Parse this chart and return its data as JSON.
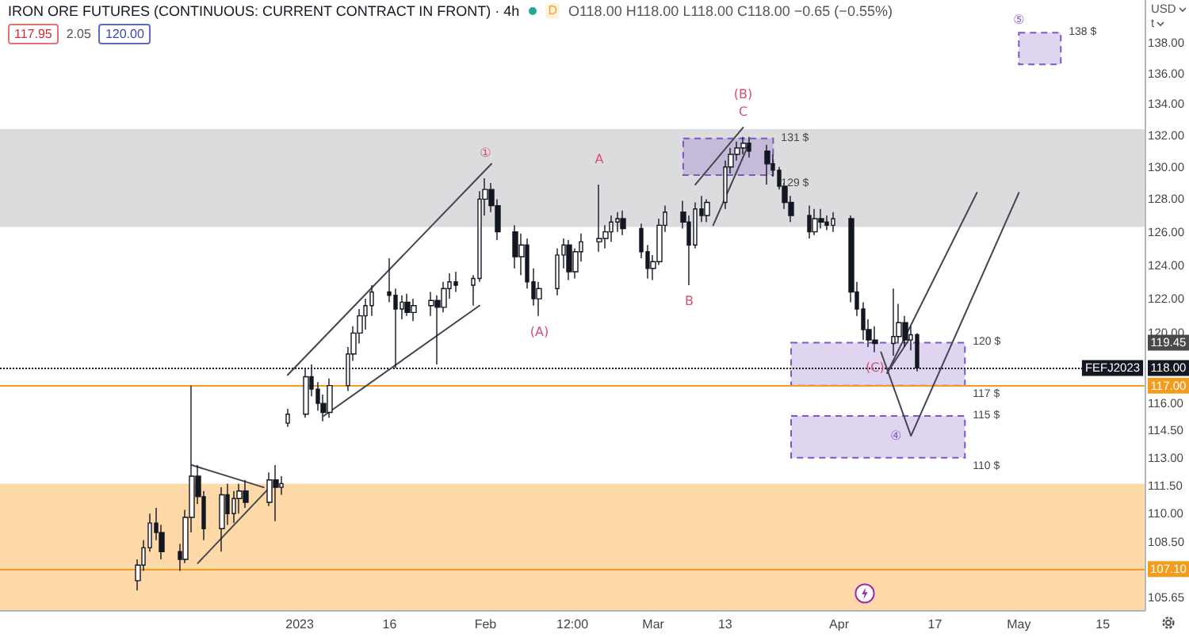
{
  "chart_data": {
    "type": "candlestick",
    "title": "IRON ORE FUTURES (CONTINUOUS: CURRENT CONTRACT IN FRONT) · 4h",
    "ylabel": "USD",
    "color": "#131722",
    "log": true,
    "xlim": [
      "2022-11-12",
      "2023-05-22"
    ],
    "xticks": [
      {
        "value": "2023-01-01",
        "label": "2023"
      },
      {
        "value": "2023-01-16",
        "label": "16"
      },
      {
        "value": "2023-02-01",
        "label": "Feb"
      },
      {
        "value": "2023-02-15T12:00",
        "label": "12:00"
      },
      {
        "value": "2023-03-01",
        "label": "Mar"
      },
      {
        "value": "2023-03-13",
        "label": "13"
      },
      {
        "value": "2023-04-01",
        "label": "Apr"
      },
      {
        "value": "2023-04-17",
        "label": "17"
      },
      {
        "value": "2023-05-01",
        "label": "May"
      },
      {
        "value": "2023-05-15",
        "label": "15"
      }
    ],
    "ylim": [
      105,
      140.9
    ],
    "yticks": [
      {
        "value": 138,
        "label": "138.00"
      },
      {
        "value": 136,
        "label": "136.00"
      },
      {
        "value": 134,
        "label": "134.00"
      },
      {
        "value": 132,
        "label": "132.00"
      },
      {
        "value": 130,
        "label": "130.00"
      },
      {
        "value": 128,
        "label": "128.00"
      },
      {
        "value": 126,
        "label": "126.00"
      },
      {
        "value": 124,
        "label": "124.00"
      },
      {
        "value": 122,
        "label": "122.00"
      },
      {
        "value": 120,
        "label": "120.00"
      },
      {
        "value": 116,
        "label": "116.00"
      },
      {
        "value": 114.5,
        "label": "114.50"
      },
      {
        "value": 113,
        "label": "113.00"
      },
      {
        "value": 111.5,
        "label": "111.50"
      },
      {
        "value": 110,
        "label": "110.00"
      },
      {
        "value": 108.5,
        "label": "108.50"
      },
      {
        "value": 105.65,
        "label": "105.65"
      }
    ],
    "x": [
      "2022-12-05",
      "2022-12-06",
      "2022-12-07",
      "2022-12-08",
      "2022-12-09",
      "2022-12-12",
      "2022-12-13",
      "2022-12-14",
      "2022-12-15",
      "2022-12-16",
      "2022-12-19",
      "2022-12-20",
      "2022-12-21",
      "2022-12-22",
      "2022-12-23",
      "2022-12-27",
      "2022-12-28",
      "2022-12-29",
      "2022-12-30",
      "2023-01-02",
      "2023-01-03",
      "2023-01-04",
      "2023-01-05",
      "2023-01-06",
      "2023-01-09",
      "2023-01-10",
      "2023-01-11",
      "2023-01-12",
      "2023-01-13",
      "2023-01-16",
      "2023-01-17",
      "2023-01-18",
      "2023-01-19",
      "2023-01-20",
      "2023-01-23",
      "2023-01-24",
      "2023-01-25",
      "2023-01-26",
      "2023-01-27",
      "2023-01-30",
      "2023-01-31",
      "2023-02-01",
      "2023-02-02",
      "2023-02-03",
      "2023-02-06",
      "2023-02-07",
      "2023-02-08",
      "2023-02-09",
      "2023-02-10",
      "2023-02-13",
      "2023-02-14",
      "2023-02-15",
      "2023-02-16",
      "2023-02-17",
      "2023-02-20",
      "2023-02-21",
      "2023-02-22",
      "2023-02-23",
      "2023-02-24",
      "2023-02-27",
      "2023-02-28",
      "2023-03-01",
      "2023-03-02",
      "2023-03-03",
      "2023-03-06",
      "2023-03-07",
      "2023-03-08",
      "2023-03-09",
      "2023-03-10",
      "2023-03-13",
      "2023-03-14",
      "2023-03-15",
      "2023-03-16",
      "2023-03-17",
      "2023-03-20",
      "2023-03-21",
      "2023-03-22",
      "2023-03-23",
      "2023-03-24",
      "2023-03-27",
      "2023-03-28",
      "2023-03-29",
      "2023-03-30",
      "2023-03-31",
      "2023-04-03",
      "2023-04-04",
      "2023-04-05",
      "2023-04-06",
      "2023-04-07",
      "2023-04-10",
      "2023-04-11",
      "2023-04-12",
      "2023-04-13",
      "2023-04-14"
    ],
    "ohlc": [
      [
        106.5,
        107.6,
        106.0,
        107.3
      ],
      [
        107.3,
        108.6,
        107.0,
        108.2
      ],
      [
        108.2,
        110.0,
        108.0,
        109.5
      ],
      [
        109.5,
        110.3,
        108.6,
        109.0
      ],
      [
        109.0,
        109.4,
        107.6,
        108.0
      ],
      [
        108.0,
        108.4,
        107.0,
        107.6
      ],
      [
        107.6,
        110.2,
        107.4,
        109.8
      ],
      [
        109.8,
        117.0,
        109.0,
        112.0
      ],
      [
        112.0,
        112.6,
        110.5,
        110.9
      ],
      [
        110.9,
        111.2,
        108.6,
        109.2
      ],
      [
        109.2,
        111.4,
        108.0,
        111.0
      ],
      [
        111.0,
        111.6,
        109.4,
        110.0
      ],
      [
        110.0,
        111.2,
        109.5,
        110.8
      ],
      [
        110.8,
        111.6,
        110.0,
        111.2
      ],
      [
        111.2,
        111.8,
        110.3,
        110.6
      ],
      [
        110.6,
        112.2,
        110.4,
        111.8
      ],
      [
        111.8,
        112.6,
        109.6,
        111.4
      ],
      [
        111.4,
        112.0,
        111.0,
        111.6
      ],
      [
        114.9,
        115.7,
        114.7,
        115.4
      ],
      [
        115.4,
        118.0,
        115.2,
        117.5
      ],
      [
        117.5,
        118.2,
        116.4,
        116.8
      ],
      [
        116.8,
        117.2,
        115.6,
        116.0
      ],
      [
        116.0,
        116.5,
        115.0,
        115.5
      ],
      [
        115.5,
        117.4,
        115.2,
        117.0
      ],
      [
        117.0,
        119.2,
        116.7,
        118.8
      ],
      [
        118.8,
        120.4,
        118.4,
        120.0
      ],
      [
        120.0,
        121.4,
        119.4,
        121.0
      ],
      [
        121.0,
        122.0,
        120.2,
        121.6
      ],
      [
        121.6,
        122.8,
        121.0,
        122.4
      ],
      [
        122.4,
        124.4,
        121.8,
        122.2
      ],
      [
        122.2,
        122.6,
        118.0,
        121.4
      ],
      [
        121.4,
        122.2,
        120.8,
        121.8
      ],
      [
        121.8,
        122.3,
        121.0,
        121.2
      ],
      [
        121.2,
        122.0,
        120.7,
        121.6
      ],
      [
        121.6,
        122.4,
        121.0,
        121.9
      ],
      [
        121.9,
        122.2,
        118.2,
        121.5
      ],
      [
        121.5,
        123.0,
        121.2,
        122.6
      ],
      [
        122.6,
        123.5,
        122.0,
        123.0
      ],
      [
        123.0,
        123.6,
        122.4,
        122.8
      ],
      [
        122.8,
        123.4,
        121.6,
        123.2
      ],
      [
        123.2,
        128.5,
        123.0,
        128.0
      ],
      [
        128.0,
        129.3,
        127.0,
        128.6
      ],
      [
        128.6,
        129.0,
        127.2,
        127.6
      ],
      [
        127.6,
        128.0,
        125.5,
        126.0
      ],
      [
        126.0,
        126.4,
        123.8,
        124.5
      ],
      [
        124.5,
        125.9,
        123.4,
        125.2
      ],
      [
        125.2,
        125.6,
        122.6,
        123.0
      ],
      [
        123.0,
        123.8,
        121.6,
        122.0
      ],
      [
        122.0,
        123.0,
        121.0,
        122.6
      ],
      [
        122.6,
        125.0,
        122.2,
        124.6
      ],
      [
        124.6,
        125.6,
        123.8,
        125.2
      ],
      [
        125.2,
        125.5,
        123.1,
        123.6
      ],
      [
        123.6,
        125.0,
        123.2,
        124.8
      ],
      [
        124.8,
        125.9,
        124.2,
        125.4
      ],
      [
        125.4,
        128.9,
        124.8,
        125.6
      ],
      [
        125.6,
        126.4,
        125.0,
        126.0
      ],
      [
        126.0,
        127.0,
        125.4,
        126.6
      ],
      [
        126.6,
        127.2,
        126.0,
        126.8
      ],
      [
        126.8,
        127.3,
        125.8,
        126.2
      ],
      [
        126.2,
        126.5,
        124.4,
        124.8
      ],
      [
        124.8,
        125.2,
        123.2,
        123.8
      ],
      [
        123.8,
        124.6,
        123.1,
        124.2
      ],
      [
        124.2,
        126.8,
        124.0,
        126.4
      ],
      [
        126.4,
        127.6,
        126.0,
        127.2
      ],
      [
        127.2,
        127.9,
        126.2,
        126.6
      ],
      [
        126.6,
        127.0,
        122.8,
        125.2
      ],
      [
        125.2,
        127.8,
        125.0,
        127.4
      ],
      [
        127.4,
        128.2,
        126.6,
        127.0
      ],
      [
        127.0,
        128.0,
        126.6,
        127.8
      ],
      [
        127.8,
        130.4,
        127.4,
        130.0
      ],
      [
        130.0,
        131.2,
        129.6,
        130.8
      ],
      [
        130.8,
        131.6,
        130.4,
        131.2
      ],
      [
        131.2,
        131.9,
        130.8,
        131.5
      ],
      [
        131.5,
        131.9,
        130.6,
        131.0
      ],
      [
        131.0,
        131.4,
        128.9,
        130.2
      ],
      [
        130.2,
        130.8,
        129.4,
        129.8
      ],
      [
        129.8,
        130.0,
        128.6,
        128.8
      ],
      [
        128.8,
        129.0,
        127.4,
        127.8
      ],
      [
        127.8,
        128.2,
        126.6,
        127.0
      ],
      [
        127.0,
        127.6,
        125.6,
        126.0
      ],
      [
        126.0,
        127.4,
        125.8,
        126.8
      ],
      [
        126.8,
        127.4,
        126.2,
        126.6
      ],
      [
        126.6,
        127.0,
        126.1,
        126.4
      ],
      [
        126.4,
        127.2,
        126.0,
        126.8
      ],
      [
        126.8,
        127.0,
        121.8,
        122.4
      ],
      [
        122.4,
        123.0,
        121.0,
        121.4
      ],
      [
        121.4,
        121.8,
        119.6,
        120.2
      ],
      [
        120.2,
        120.8,
        119.2,
        119.6
      ],
      [
        119.6,
        120.4,
        118.9,
        119.4
      ],
      [
        119.4,
        122.6,
        118.7,
        119.8
      ],
      [
        119.8,
        121.7,
        119.4,
        120.6
      ],
      [
        120.6,
        121.0,
        119.2,
        119.6
      ],
      [
        119.6,
        120.4,
        119.0,
        119.9
      ],
      [
        119.9,
        120.0,
        117.8,
        118.0
      ]
    ],
    "series": [
      {
        "type": "line",
        "x": [
          "2022-12-30",
          "2023-02-02"
        ],
        "values": [
          117.6,
          130.2
        ],
        "color": "#434651",
        "line_style": "solid"
      },
      {
        "type": "line",
        "x": [
          "2023-01-05",
          "2023-01-31"
        ],
        "values": [
          115.3,
          121.6
        ],
        "color": "#434651",
        "line_style": "solid"
      },
      {
        "type": "line",
        "x": [
          "2022-12-14",
          "2022-12-26"
        ],
        "values": [
          112.6,
          111.4
        ],
        "color": "#434651",
        "line_style": "solid"
      },
      {
        "type": "line",
        "x": [
          "2022-12-15",
          "2022-12-27"
        ],
        "values": [
          107.4,
          111.4
        ],
        "color": "#434651",
        "line_style": "solid"
      },
      {
        "type": "line",
        "x": [
          "2023-03-08",
          "2023-03-16"
        ],
        "values": [
          128.9,
          132.5
        ],
        "color": "#434651",
        "line_style": "solid"
      },
      {
        "type": "line",
        "x": [
          "2023-03-11",
          "2023-03-17"
        ],
        "values": [
          126.4,
          131.5
        ],
        "color": "#434651",
        "line_style": "solid"
      },
      {
        "type": "line",
        "x": [
          "2023-04-13",
          "2023-04-09",
          "2023-04-24"
        ],
        "values": [
          119.8,
          117.7,
          128.4
        ],
        "color": "#434651",
        "line_style": "solid"
      },
      {
        "type": "line",
        "x": [
          "2023-04-08",
          "2023-04-13",
          "2023-05-01"
        ],
        "values": [
          118.9,
          114.2,
          128.4
        ],
        "color": "#434651",
        "line_style": "solid"
      },
      {
        "type": "area",
        "x": [
          "2023-05-01",
          "2023-05-08",
          "2023-05-08",
          "2023-05-01",
          "2023-05-01"
        ],
        "values": [
          138.7,
          138.7,
          136.6,
          136.6,
          138.7
        ],
        "color": "#7e57c2",
        "line_style": "dashed"
      },
      {
        "type": "area",
        "x": [
          "2023-03-06",
          "2023-03-21",
          "2023-03-21",
          "2023-03-06",
          "2023-03-06"
        ],
        "values": [
          131.8,
          131.8,
          129.5,
          129.5,
          131.8
        ],
        "color": "#7e57c2",
        "line_style": "dashed"
      },
      {
        "type": "area",
        "x": [
          "2023-03-24",
          "2023-04-22",
          "2023-04-22",
          "2023-03-24",
          "2023-03-24"
        ],
        "values": [
          115.3,
          115.3,
          113.0,
          113.0,
          115.3
        ],
        "color": "#7e57c2",
        "line_style": "dashed"
      },
      {
        "type": "area",
        "x": [
          "2023-03-24",
          "2023-04-22",
          "2023-04-22",
          "2023-03-24",
          "2023-03-24"
        ],
        "values": [
          119.45,
          119.45,
          117,
          117,
          119.45
        ],
        "color": "#7e57c2",
        "line_style": "dashed"
      }
    ],
    "bands": [
      {
        "axis": "y",
        "from": 126.3,
        "to": 132.4,
        "color": "#dcdcdf"
      },
      {
        "axis": "y",
        "from": 105,
        "to": 111.6,
        "color": "#fdd9a7"
      }
    ],
    "ref_lines": [
      {
        "axis": "y",
        "value": 118,
        "label": "118.00",
        "color": "#131722",
        "line_style": "dotted"
      },
      {
        "axis": "y",
        "value": 117,
        "label": "117.00",
        "color": "#f29d1d",
        "line_style": "solid"
      },
      {
        "axis": "y",
        "value": 107.1,
        "label": "107.10",
        "color": "#f29d1d",
        "line_style": "solid"
      }
    ],
    "annotations": [
      "D",
      "O118.00 H118.00 L118.00 C118.00 −0.65 (−0.55%)",
      "117.95",
      "2.05",
      "120.00",
      "t",
      {
        "text": "119.45",
        "y": 119.45
      },
      {
        "text": "FEFJ2023",
        "x": "2023-05-22",
        "y": 118
      },
      {
        "text": "138 $",
        "x": "2023-05-08",
        "y": 138.7
      },
      {
        "text": "131 $",
        "x": "2023-03-21",
        "y": 131.8
      },
      {
        "text": "129 $",
        "x": "2023-03-21",
        "y": 129.5
      },
      {
        "text": "120 $",
        "x": "2023-04-22",
        "y": 119.45
      },
      {
        "text": "117 $",
        "x": "2023-04-22",
        "y": 117
      },
      {
        "text": "115 $",
        "x": "2023-04-22",
        "y": 115.3
      },
      {
        "text": "110 $",
        "x": "2023-04-22",
        "y": 113.0
      },
      {
        "text": "①",
        "x": "2023-02-01",
        "y": 129.3
      },
      {
        "text": "C",
        "x": "2023-03-16",
        "y": 131.9
      },
      {
        "text": "(B)",
        "x": "2023-03-16",
        "y": 131.9
      },
      {
        "text": "A",
        "x": "2023-02-20",
        "y": 128.9
      },
      {
        "text": "(A)",
        "x": "2023-02-10",
        "y": 121.0
      },
      {
        "text": "B",
        "x": "2023-03-07",
        "y": 122.8
      },
      {
        "text": "(C)",
        "x": "2023-04-07",
        "y": 118.9
      },
      {
        "text": "④",
        "x": "2023-04-13",
        "y": 114.2
      },
      {
        "text": "⑤",
        "x": "2023-05-01",
        "y": 138.7
      }
    ]
  }
}
